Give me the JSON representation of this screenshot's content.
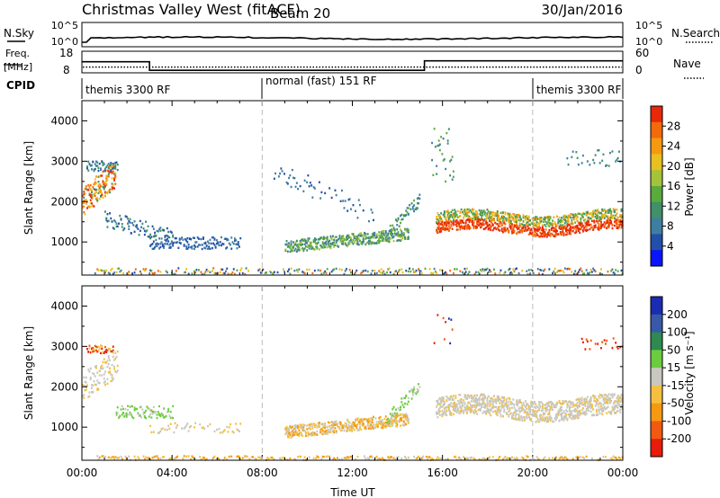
{
  "header": {
    "title": "Christmas Valley West (fitACF)",
    "beam": "Beam 20",
    "date": "30/Jan/2016"
  },
  "status_panels": {
    "nsky_label": "N.Sky",
    "nsearch_label": "N.Search",
    "nsky_left_ticks": [
      "10^5",
      "10^0"
    ],
    "nsky_right_ticks": [
      "10^5",
      "10^0"
    ],
    "freq_label_1": "Freq.",
    "freq_label_2": "[MHz]",
    "freq_ticks": [
      "18",
      "8"
    ],
    "nave_label": "Nave",
    "nave_ticks": [
      "60",
      "0"
    ],
    "cpid_label": "CPID",
    "cpid_segments": [
      {
        "label": "themis 3300 RF",
        "start_h": 0,
        "end_h": 8
      },
      {
        "label": "normal (fast) 151 RF",
        "start_h": 8,
        "end_h": 20
      },
      {
        "label": "themis 3300 RF",
        "start_h": 20,
        "end_h": 24
      }
    ],
    "freq_trace": [
      [
        0,
        14.5
      ],
      [
        3,
        14.5
      ],
      [
        3,
        9.5
      ],
      [
        15.2,
        9.5
      ],
      [
        15.2,
        15
      ],
      [
        24,
        15
      ]
    ],
    "nave_trace_level": 20
  },
  "chart_data": [
    {
      "type": "heatmap",
      "name": "power",
      "xlabel": "",
      "ylabel": "Slant Range [km]",
      "x_ticks": [
        "00:00",
        "04:00",
        "08:00",
        "12:00",
        "16:00",
        "20:00",
        "00:00"
      ],
      "x_range_hours": [
        0,
        24
      ],
      "y_range_km": [
        180,
        4500
      ],
      "y_ticks": [
        1000,
        2000,
        3000,
        4000
      ],
      "colorbar_label": "Power [dB]",
      "colorbar_range": [
        0,
        30
      ],
      "colorbar_ticks": [
        "4",
        "8",
        "12",
        "16",
        "20",
        "24",
        "28"
      ],
      "colorbar_colors": [
        "#0a14ff",
        "#2250a8",
        "#3f7ea0",
        "#40906a",
        "#5aaa3c",
        "#a6c23a",
        "#e8c020",
        "#f59a10",
        "#f26a0a",
        "#e8280a"
      ],
      "mode_change_lines_hours": [
        8,
        20
      ]
    },
    {
      "type": "heatmap",
      "name": "velocity",
      "xlabel": "Time UT",
      "ylabel": "Slant Range [km]",
      "x_ticks": [
        "00:00",
        "04:00",
        "08:00",
        "12:00",
        "16:00",
        "20:00",
        "00:00"
      ],
      "x_range_hours": [
        0,
        24
      ],
      "y_range_km": [
        180,
        4500
      ],
      "y_ticks": [
        1000,
        2000,
        3000,
        4000
      ],
      "colorbar_label": "Velocity [m s⁻¹]",
      "colorbar_ticks": [
        "200",
        "100",
        "50",
        "15",
        "-15",
        "-50",
        "-100",
        "-200"
      ],
      "colorbar_colors": [
        "#1a2cb0",
        "#3858a8",
        "#2e8a50",
        "#6ccc40",
        "#c8c8c0",
        "#f5c040",
        "#f59a10",
        "#f05a10",
        "#e81c0a"
      ],
      "mode_change_lines_hours": [
        8,
        20
      ]
    }
  ]
}
